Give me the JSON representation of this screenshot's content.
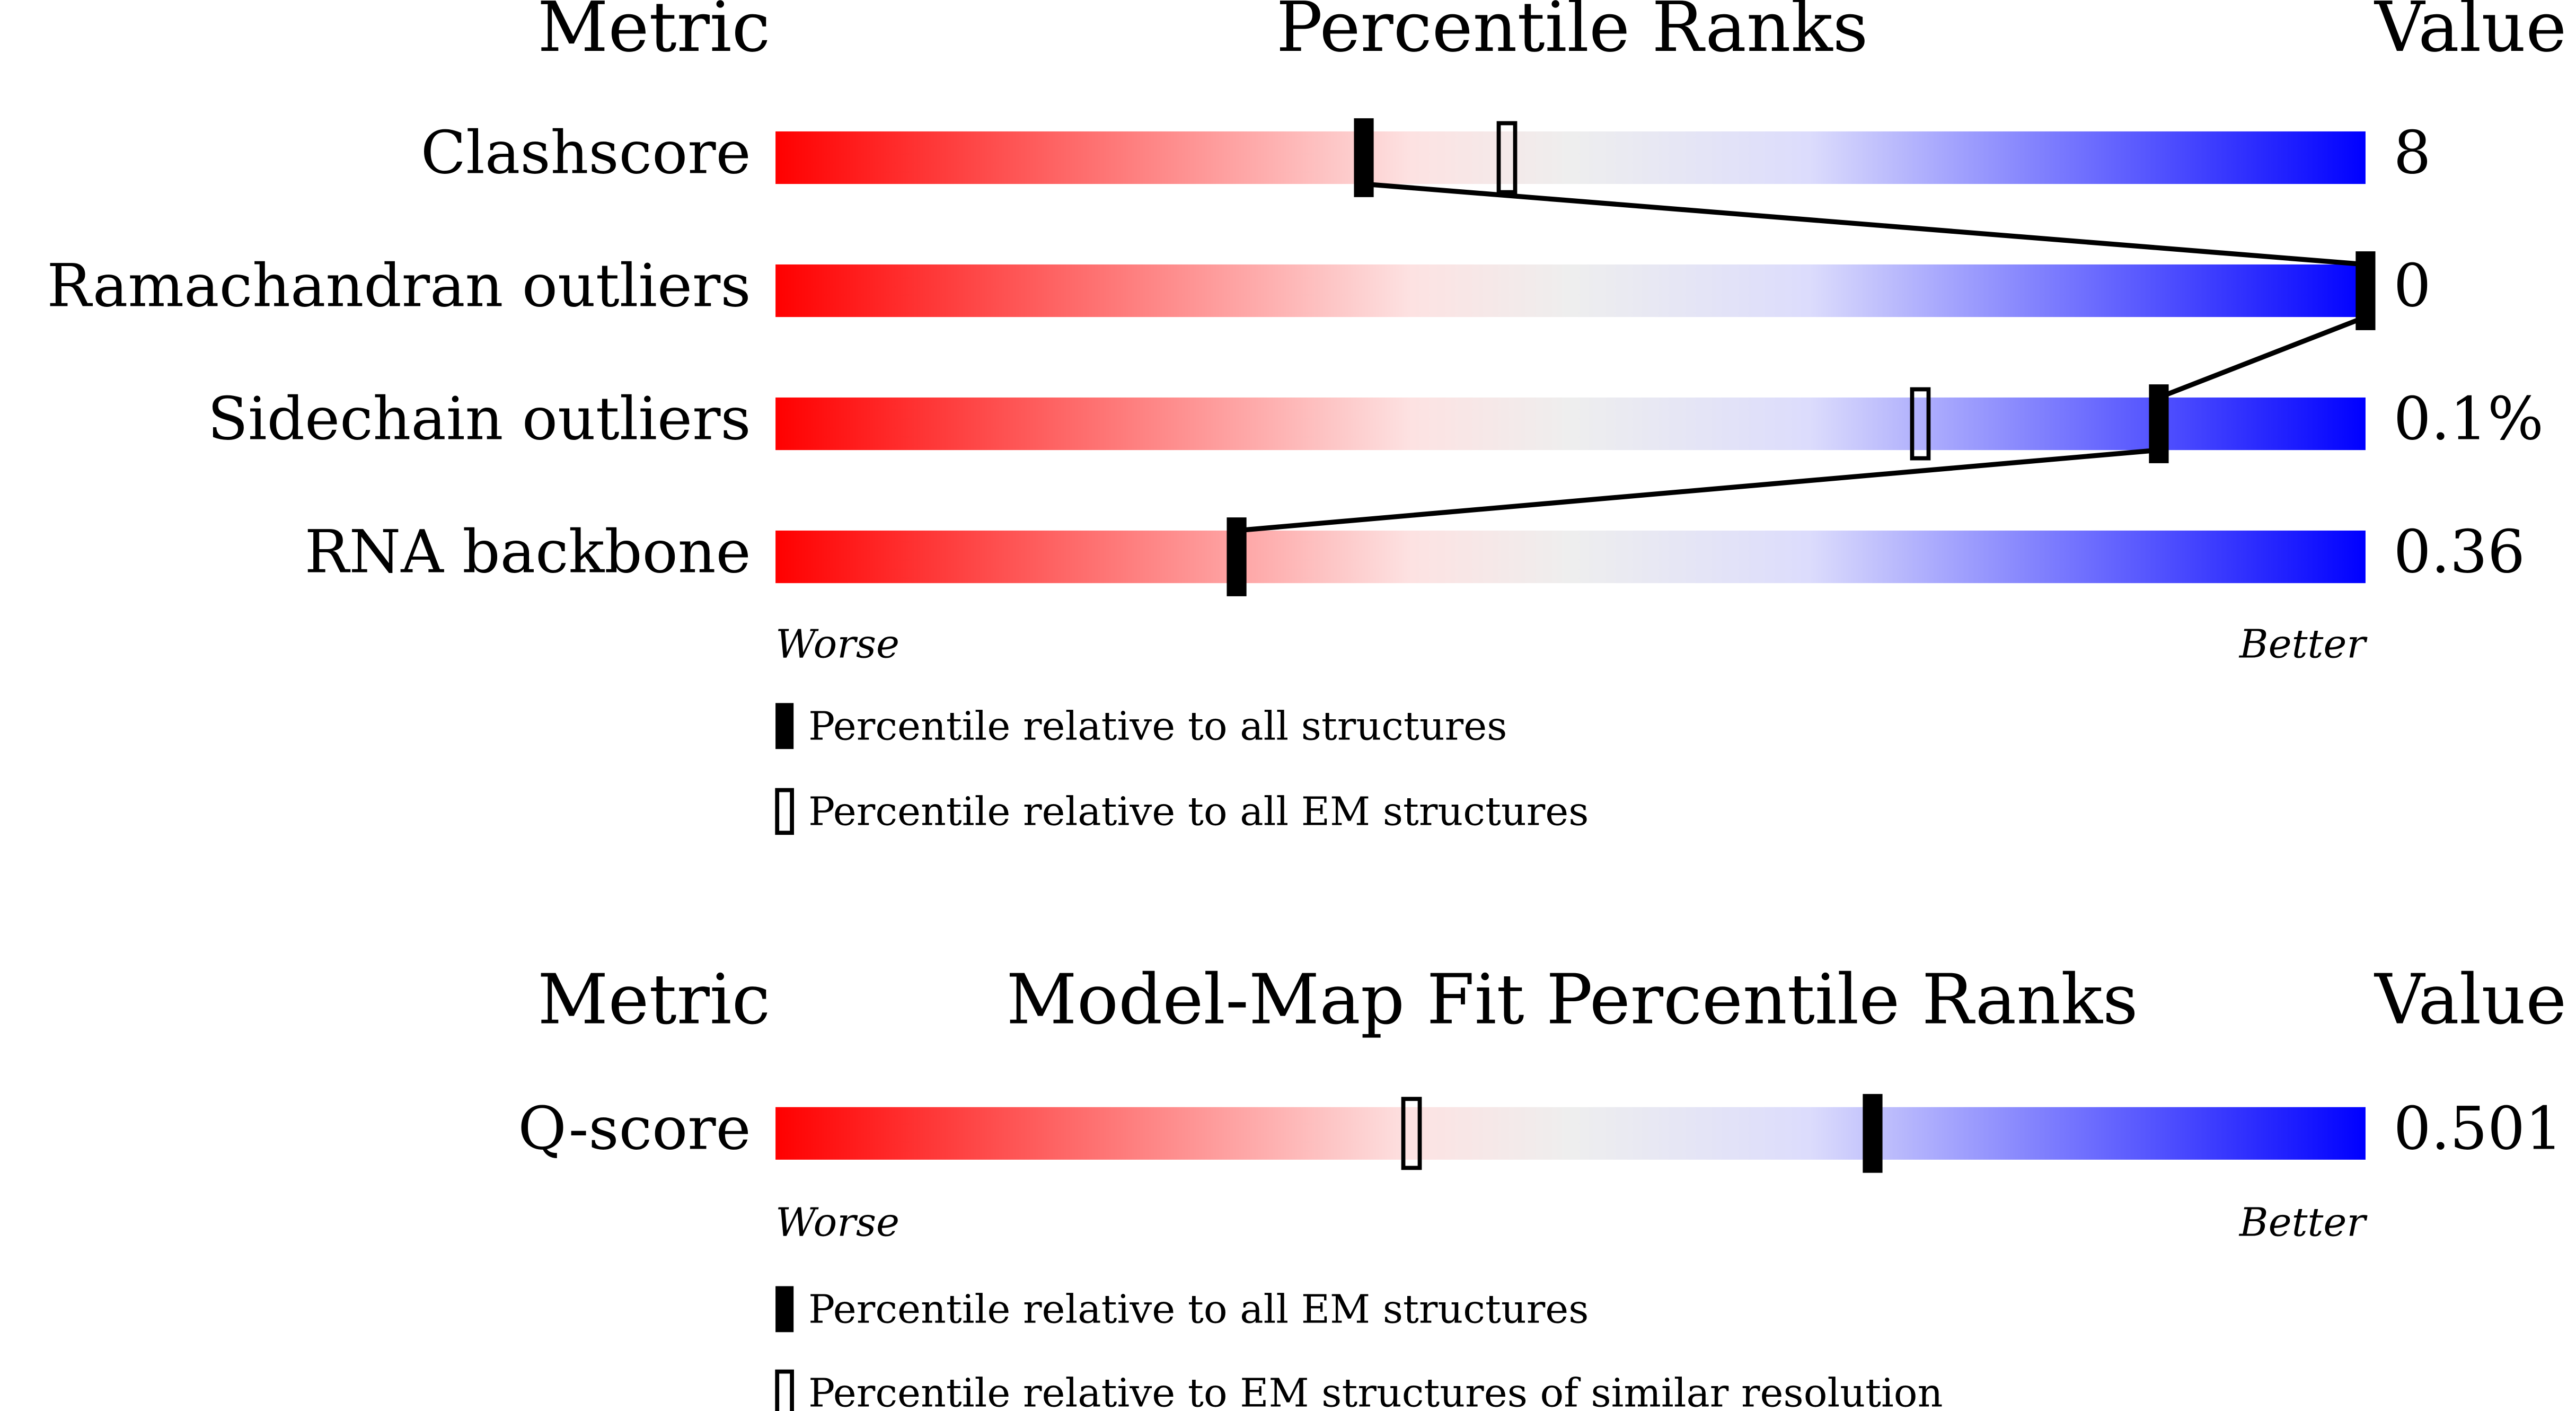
{
  "panels": [
    {
      "headers": {
        "metric": "Metric",
        "title": "Percentile Ranks",
        "value": "Value"
      },
      "xlim": [
        0,
        100
      ],
      "rows": [
        {
          "metric": "Clashscore",
          "value": "8",
          "percentiles": [
            37,
            46
          ]
        },
        {
          "metric": "Ramachandran outliers",
          "value": "0",
          "percentiles": [
            100,
            null
          ]
        },
        {
          "metric": "Sidechain outliers",
          "value": "0.1%",
          "percentiles": [
            87,
            72
          ]
        },
        {
          "metric": "RNA backbone",
          "value": "0.36",
          "percentiles": [
            29,
            null
          ]
        }
      ],
      "axis_labels": {
        "worse": "Worse",
        "better": "Better"
      },
      "legend": [
        "Percentile relative to all structures",
        "Percentile relative to all EM structures"
      ]
    },
    {
      "headers": {
        "metric": "Metric",
        "title": "Model-Map Fit Percentile Ranks",
        "value": "Value"
      },
      "xlim": [
        0,
        100
      ],
      "rows": [
        {
          "metric": "Q-score",
          "value": "0.501",
          "percentiles": [
            69,
            40
          ]
        }
      ],
      "axis_labels": {
        "worse": "Worse",
        "better": "Better"
      },
      "legend": [
        "Percentile relative to all EM structures",
        "Percentile relative to EM structures of similar resolution"
      ]
    }
  ]
}
